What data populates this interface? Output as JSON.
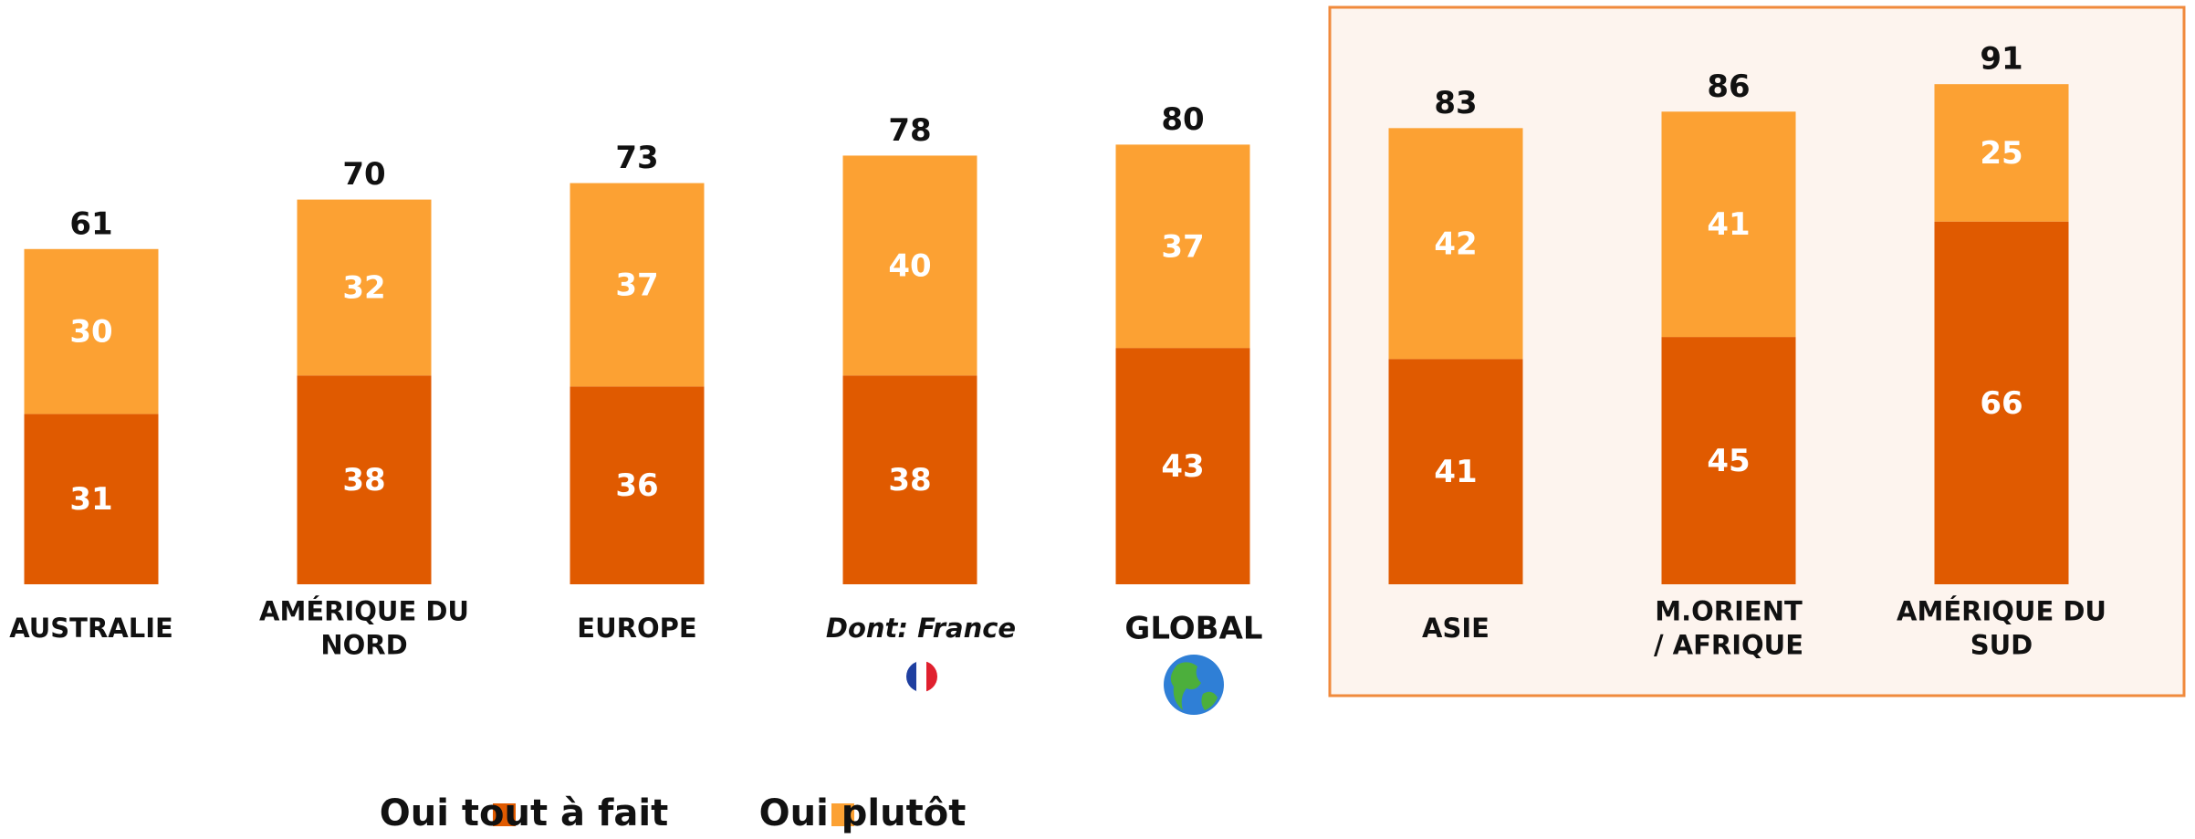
{
  "chart_data": {
    "type": "stacked_bar",
    "categories": [
      [
        "AUSTRALIE"
      ],
      [
        "AMÉRIQUE DU",
        "NORD"
      ],
      [
        "EUROPE"
      ],
      [
        "Dont: France"
      ],
      [
        "GLOBAL"
      ],
      [
        "ASIE"
      ],
      [
        "M.ORIENT",
        "/ AFRIQUE"
      ],
      [
        "AMÉRIQUE DU",
        "SUD"
      ]
    ],
    "series": [
      {
        "name": "Oui tout à fait",
        "color": "#e05a00",
        "values": [
          31,
          38,
          36,
          38,
          43,
          41,
          45,
          66
        ]
      },
      {
        "name": "Oui plutôt",
        "color": "#fca133",
        "values": [
          30,
          32,
          37,
          40,
          37,
          42,
          41,
          25
        ]
      }
    ],
    "totals": [
      61,
      70,
      73,
      78,
      80,
      83,
      86,
      91
    ],
    "ylim": [
      0,
      100
    ]
  }
}
